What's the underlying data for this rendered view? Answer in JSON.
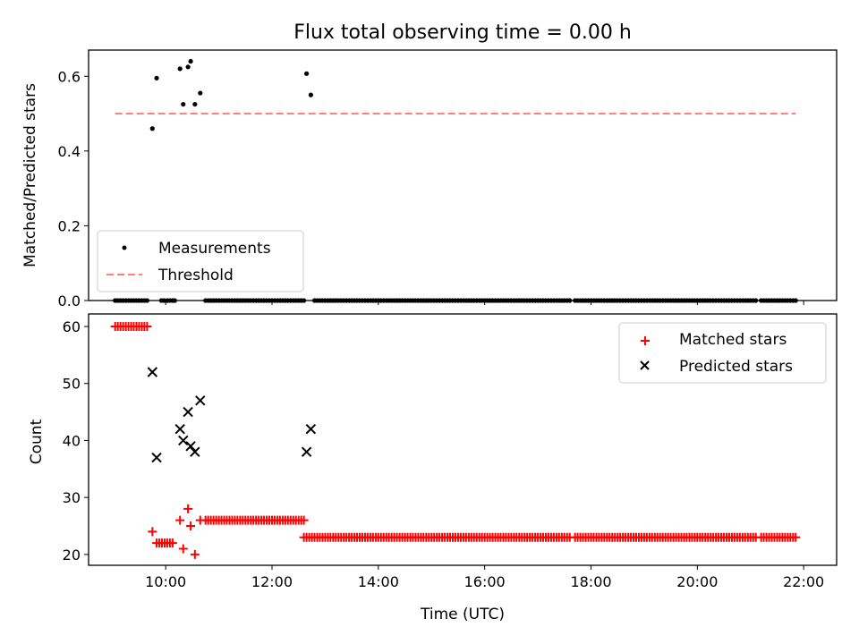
{
  "figure": {
    "title": "Flux total observing time = 0.00 h"
  },
  "colors": {
    "measurement": "#000000",
    "threshold": "#ff7f7f",
    "matched": "#ff0000",
    "predicted": "#000000"
  },
  "chart_data": [
    {
      "type": "scatter",
      "panel": "top",
      "ylabel": "Matched/Predicted stars",
      "xlabel": "",
      "ylim": [
        0,
        0.67
      ],
      "yticks": [
        0.0,
        0.2,
        0.4,
        0.6
      ],
      "ytick_labels": [
        "0.0",
        "0.2",
        "0.4",
        "0.6"
      ],
      "xlim": [
        8.55,
        22.62
      ],
      "x_unit": "hours UTC",
      "legend": {
        "position": "lower-left",
        "entries": [
          "Measurements",
          "Threshold"
        ]
      },
      "series": [
        {
          "name": "Measurements",
          "points_x": [
            9.05,
            9.1,
            9.15,
            9.2,
            9.25,
            9.3,
            9.35,
            9.4,
            9.45,
            9.5,
            9.55,
            9.6,
            9.65,
            9.75,
            9.83,
            9.92,
            9.97,
            10.03,
            10.08,
            10.13,
            10.17,
            10.27,
            10.33,
            10.42,
            10.47,
            10.55,
            10.65,
            10.75,
            10.8,
            10.85,
            10.9,
            10.95,
            11.0,
            11.05,
            11.1,
            11.15,
            11.2,
            11.25,
            11.3,
            11.35,
            11.4,
            11.45,
            11.5,
            11.55,
            11.6,
            11.65,
            11.7,
            11.75,
            11.8,
            11.85,
            11.9,
            11.95,
            12.0,
            12.05,
            12.1,
            12.15,
            12.2,
            12.25,
            12.3,
            12.35,
            12.4,
            12.45,
            12.5,
            12.55,
            12.6,
            12.65,
            12.73,
            12.8,
            12.85,
            12.9,
            12.95,
            13.0,
            13.05,
            13.1,
            13.15,
            13.2,
            13.25,
            13.3,
            13.35,
            13.4,
            13.45,
            13.5,
            13.55,
            13.6,
            13.65,
            13.7,
            13.75,
            13.8,
            13.85,
            13.9,
            13.95,
            14.0,
            14.05,
            14.1,
            14.15,
            14.2,
            14.25,
            14.3,
            14.35,
            14.4,
            14.45,
            14.5,
            14.55,
            14.6,
            14.65,
            14.7,
            14.75,
            14.8,
            14.85,
            14.9,
            14.95,
            15.0,
            15.05,
            15.1,
            15.15,
            15.2,
            15.25,
            15.3,
            15.35,
            15.4,
            15.45,
            15.5,
            15.55,
            15.6,
            15.65,
            15.7,
            15.75,
            15.8,
            15.85,
            15.9,
            15.95,
            16.0,
            16.05,
            16.1,
            16.15,
            16.2,
            16.25,
            16.3,
            16.35,
            16.4,
            16.45,
            16.5,
            16.55,
            16.6,
            16.65,
            16.7,
            16.75,
            16.8,
            16.85,
            16.9,
            16.95,
            17.0,
            17.05,
            17.1,
            17.15,
            17.2,
            17.25,
            17.3,
            17.35,
            17.4,
            17.45,
            17.5,
            17.55,
            17.6,
            17.7,
            17.75,
            17.8,
            17.85,
            17.9,
            17.95,
            18.0,
            18.05,
            18.1,
            18.15,
            18.2,
            18.25,
            18.3,
            18.35,
            18.4,
            18.45,
            18.5,
            18.55,
            18.6,
            18.65,
            18.7,
            18.75,
            18.8,
            18.85,
            18.9,
            18.95,
            19.0,
            19.05,
            19.1,
            19.15,
            19.2,
            19.25,
            19.3,
            19.35,
            19.4,
            19.45,
            19.5,
            19.55,
            19.6,
            19.65,
            19.7,
            19.75,
            19.8,
            19.85,
            19.9,
            19.95,
            20.0,
            20.05,
            20.1,
            20.15,
            20.2,
            20.25,
            20.3,
            20.35,
            20.4,
            20.45,
            20.5,
            20.55,
            20.6,
            20.65,
            20.7,
            20.75,
            20.8,
            20.85,
            20.9,
            20.95,
            21.0,
            21.05,
            21.1,
            21.2,
            21.25,
            21.3,
            21.35,
            21.4,
            21.45,
            21.5,
            21.55,
            21.6,
            21.65,
            21.7,
            21.75,
            21.8,
            21.85
          ],
          "points_y": [
            0,
            0,
            0,
            0,
            0,
            0,
            0,
            0,
            0,
            0,
            0,
            0,
            0,
            0.46,
            0.595,
            0,
            0,
            0,
            0,
            0,
            0,
            0.62,
            0.525,
            0.625,
            0.64,
            0.525,
            0.555,
            0,
            0,
            0,
            0,
            0,
            0,
            0,
            0,
            0,
            0,
            0,
            0,
            0,
            0,
            0,
            0,
            0,
            0,
            0,
            0,
            0,
            0,
            0,
            0,
            0,
            0,
            0,
            0,
            0,
            0,
            0,
            0,
            0,
            0,
            0,
            0,
            0,
            0,
            0.607,
            0.55,
            0,
            0,
            0,
            0,
            0,
            0,
            0,
            0,
            0,
            0,
            0,
            0,
            0,
            0,
            0,
            0,
            0,
            0,
            0,
            0,
            0,
            0,
            0,
            0,
            0,
            0,
            0,
            0,
            0,
            0,
            0,
            0,
            0,
            0,
            0,
            0,
            0,
            0,
            0,
            0,
            0,
            0,
            0,
            0,
            0,
            0,
            0,
            0,
            0,
            0,
            0,
            0,
            0,
            0,
            0,
            0,
            0,
            0,
            0,
            0,
            0,
            0,
            0,
            0,
            0,
            0,
            0,
            0,
            0,
            0,
            0,
            0,
            0,
            0,
            0,
            0,
            0,
            0,
            0,
            0,
            0,
            0,
            0,
            0,
            0,
            0,
            0,
            0,
            0,
            0,
            0,
            0,
            0,
            0,
            0,
            0,
            0,
            0,
            0,
            0,
            0,
            0,
            0,
            0,
            0,
            0,
            0,
            0,
            0,
            0,
            0,
            0,
            0,
            0,
            0,
            0,
            0,
            0,
            0,
            0,
            0,
            0,
            0,
            0,
            0,
            0,
            0,
            0,
            0,
            0,
            0,
            0,
            0,
            0,
            0,
            0,
            0,
            0,
            0,
            0,
            0,
            0,
            0,
            0,
            0,
            0,
            0,
            0,
            0,
            0,
            0,
            0,
            0,
            0,
            0,
            0,
            0,
            0,
            0,
            0,
            0,
            0,
            0,
            0,
            0,
            0,
            0,
            0,
            0,
            0,
            0,
            0,
            0,
            0,
            0,
            0,
            0,
            0,
            0,
            0,
            0,
            0,
            0,
            0,
            0,
            0,
            0,
            0,
            0,
            0,
            0,
            0,
            0,
            0,
            0,
            0
          ]
        },
        {
          "name": "Threshold",
          "line_x": [
            9.05,
            21.85
          ],
          "line_y": [
            0.5,
            0.5
          ]
        }
      ]
    },
    {
      "type": "scatter",
      "panel": "bottom",
      "xlabel": "Time (UTC)",
      "ylabel": "Count",
      "ylim": [
        18.1,
        62.2
      ],
      "yticks": [
        20,
        30,
        40,
        50,
        60
      ],
      "ytick_labels": [
        "20",
        "30",
        "40",
        "50",
        "60"
      ],
      "xlim": [
        8.55,
        22.62
      ],
      "x_unit": "hours UTC",
      "xticks": [
        10,
        12,
        14,
        16,
        18,
        20,
        22
      ],
      "xtick_labels": [
        "10:00",
        "12:00",
        "14:00",
        "16:00",
        "18:00",
        "20:00",
        "22:00"
      ],
      "legend": {
        "position": "top-right",
        "entries": [
          "Matched stars",
          "Predicted stars"
        ]
      },
      "series": [
        {
          "name": "Matched stars",
          "marker": "+",
          "segments": [
            {
              "x_start": 9.05,
              "x_end": 9.65,
              "step": 0.05,
              "y": 60
            },
            {
              "x_start": 9.83,
              "x_end": 10.13,
              "step": 0.05,
              "y": 22
            },
            {
              "x_start": 10.75,
              "x_end": 12.6,
              "step": 0.05,
              "y": 26
            },
            {
              "x_start": 12.6,
              "x_end": 17.6,
              "step": 0.05,
              "y": 23
            },
            {
              "x_start": 17.7,
              "x_end": 21.1,
              "step": 0.05,
              "y": 23
            },
            {
              "x_start": 21.2,
              "x_end": 21.85,
              "step": 0.05,
              "y": 23
            }
          ],
          "points": [
            [
              9.75,
              24
            ],
            [
              10.27,
              26
            ],
            [
              10.33,
              21
            ],
            [
              10.42,
              28
            ],
            [
              10.47,
              25
            ],
            [
              10.55,
              20
            ],
            [
              10.65,
              26
            ]
          ]
        },
        {
          "name": "Predicted stars",
          "marker": "x",
          "points": [
            [
              9.75,
              52
            ],
            [
              9.83,
              37
            ],
            [
              10.27,
              42
            ],
            [
              10.33,
              40
            ],
            [
              10.42,
              45
            ],
            [
              10.47,
              39
            ],
            [
              10.55,
              38
            ],
            [
              10.65,
              47
            ],
            [
              12.65,
              38
            ],
            [
              12.73,
              42
            ]
          ]
        }
      ]
    }
  ]
}
